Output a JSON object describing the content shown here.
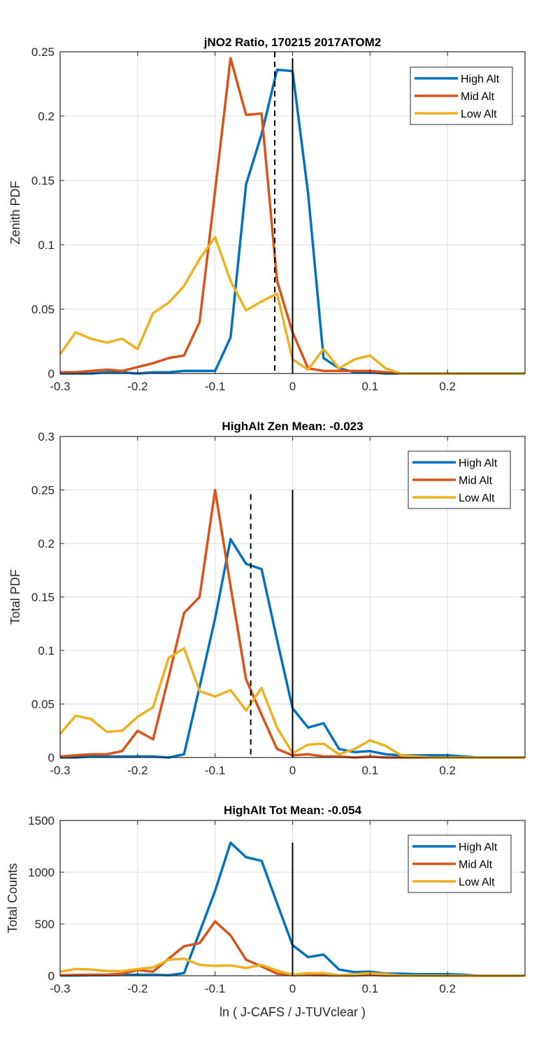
{
  "colors": {
    "high": "#0072bd",
    "mid": "#d95319",
    "low": "#edb120",
    "ref": "#000000"
  },
  "xlabel": "ln ( J-CAFS / J-TUVclear )",
  "chart_data": [
    {
      "type": "line",
      "title": "jNO2 Ratio, 170215 2017ATOM2",
      "xlabel": "",
      "ylabel": "Zenith PDF",
      "xlim": [
        -0.3,
        0.3
      ],
      "ylim": [
        0,
        0.25
      ],
      "xticks": [
        -0.3,
        -0.2,
        -0.1,
        0,
        0.1,
        0.2
      ],
      "xtick_labels": [
        "-0.3",
        "-0.2",
        "-0.1",
        "0",
        "0.1",
        "0.2"
      ],
      "yticks": [
        0,
        0.05,
        0.1,
        0.15,
        0.2,
        0.25
      ],
      "ytick_labels": [
        "0",
        "0.05",
        "0.1",
        "0.15",
        "0.2",
        "0.25"
      ],
      "grid": true,
      "legend_position": "top-right",
      "x": [
        -0.3,
        -0.28,
        -0.26,
        -0.24,
        -0.22,
        -0.2,
        -0.18,
        -0.16,
        -0.14,
        -0.12,
        -0.1,
        -0.08,
        -0.06,
        -0.04,
        -0.02,
        0,
        0.02,
        0.04,
        0.06,
        0.08,
        0.1,
        0.12,
        0.14,
        0.16,
        0.18,
        0.2,
        0.22,
        0.24,
        0.26,
        0.28,
        0.3
      ],
      "series": [
        {
          "name": "High Alt",
          "color_key": "high",
          "values": [
            0.0,
            0.0,
            0.0,
            0.001,
            0.001,
            0.0,
            0.001,
            0.001,
            0.002,
            0.002,
            0.002,
            0.028,
            0.147,
            0.186,
            0.236,
            0.235,
            0.14,
            0.012,
            0.004,
            0.001,
            0.001,
            0.0,
            0.0,
            0.0,
            0.0,
            0.0,
            0.0,
            0.0,
            0.0,
            0.0,
            0.0
          ]
        },
        {
          "name": "Mid Alt",
          "color_key": "mid",
          "values": [
            0.001,
            0.001,
            0.002,
            0.003,
            0.002,
            0.005,
            0.008,
            0.012,
            0.014,
            0.04,
            0.142,
            0.245,
            0.201,
            0.202,
            0.072,
            0.032,
            0.004,
            0.002,
            0.002,
            0.002,
            0.002,
            0.001,
            0.0,
            0.0,
            0.0,
            0.0,
            0.0,
            0.0,
            0.0,
            0.0,
            0.0
          ]
        },
        {
          "name": "Low Alt",
          "color_key": "low",
          "values": [
            0.015,
            0.032,
            0.027,
            0.024,
            0.027,
            0.019,
            0.047,
            0.055,
            0.068,
            0.089,
            0.106,
            0.072,
            0.049,
            0.056,
            0.062,
            0.011,
            0.003,
            0.019,
            0.004,
            0.011,
            0.014,
            0.004,
            0.0,
            0.0,
            0.0,
            0.0,
            0.0,
            0.0,
            0.0,
            0.0,
            0.0
          ]
        }
      ],
      "reference_lines": [
        {
          "name": "zero-line",
          "x": 0,
          "y_top": 0.245,
          "style": "solid"
        },
        {
          "name": "mean-line",
          "x": -0.023,
          "y_top": 0.25,
          "style": "dashed"
        }
      ]
    },
    {
      "type": "line",
      "title": "HighAlt Zen Mean: -0.023",
      "xlabel": "",
      "ylabel": "Total PDF",
      "xlim": [
        -0.3,
        0.3
      ],
      "ylim": [
        0,
        0.3
      ],
      "xticks": [
        -0.3,
        -0.2,
        -0.1,
        0,
        0.1,
        0.2
      ],
      "xtick_labels": [
        "-0.3",
        "-0.2",
        "-0.1",
        "0",
        "0.1",
        "0.2"
      ],
      "yticks": [
        0,
        0.05,
        0.1,
        0.15,
        0.2,
        0.25,
        0.3
      ],
      "ytick_labels": [
        "0",
        "0.05",
        "0.1",
        "0.15",
        "0.2",
        "0.25",
        "0.3"
      ],
      "grid": true,
      "legend_position": "top-right",
      "x": [
        -0.3,
        -0.28,
        -0.26,
        -0.24,
        -0.22,
        -0.2,
        -0.18,
        -0.16,
        -0.14,
        -0.12,
        -0.1,
        -0.08,
        -0.06,
        -0.04,
        -0.02,
        0,
        0.02,
        0.04,
        0.06,
        0.08,
        0.1,
        0.12,
        0.14,
        0.16,
        0.18,
        0.2,
        0.22,
        0.24,
        0.26,
        0.28,
        0.3
      ],
      "series": [
        {
          "name": "High Alt",
          "color_key": "high",
          "values": [
            0.0,
            0.0,
            0.001,
            0.001,
            0.001,
            0.001,
            0.001,
            0.0,
            0.003,
            0.066,
            0.13,
            0.204,
            0.181,
            0.176,
            0.11,
            0.046,
            0.028,
            0.032,
            0.008,
            0.005,
            0.006,
            0.003,
            0.002,
            0.002,
            0.002,
            0.002,
            0.001,
            0.0,
            0.0,
            0.0,
            0.0
          ]
        },
        {
          "name": "Mid Alt",
          "color_key": "mid",
          "values": [
            0.001,
            0.002,
            0.003,
            0.003,
            0.006,
            0.025,
            0.017,
            0.075,
            0.135,
            0.15,
            0.25,
            0.16,
            0.073,
            0.04,
            0.008,
            0.002,
            0.003,
            0.001,
            0.001,
            0.0,
            0.001,
            0.0,
            0.0,
            0.0,
            0.0,
            0.0,
            0.0,
            0.0,
            0.0,
            0.0,
            0.0
          ]
        },
        {
          "name": "Low Alt",
          "color_key": "low",
          "values": [
            0.022,
            0.039,
            0.036,
            0.024,
            0.025,
            0.038,
            0.047,
            0.093,
            0.102,
            0.062,
            0.057,
            0.063,
            0.044,
            0.065,
            0.028,
            0.004,
            0.012,
            0.013,
            0.003,
            0.008,
            0.016,
            0.011,
            0.002,
            0.001,
            0.0,
            0.0,
            0.0,
            0.0,
            0.0,
            0.0,
            0.0
          ]
        }
      ],
      "reference_lines": [
        {
          "name": "zero-line",
          "x": 0,
          "y_top": 0.25,
          "style": "solid"
        },
        {
          "name": "mean-line",
          "x": -0.054,
          "y_top": 0.246,
          "style": "dashed"
        }
      ]
    },
    {
      "type": "line",
      "title": "HighAlt Tot Mean: -0.054",
      "xlabel": "ln ( J-CAFS / J-TUVclear )",
      "ylabel": "Total Counts",
      "xlim": [
        -0.3,
        0.3
      ],
      "ylim": [
        0,
        1500
      ],
      "xticks": [
        -0.3,
        -0.2,
        -0.1,
        0,
        0.1,
        0.2
      ],
      "xtick_labels": [
        "-0.3",
        "-0.2",
        "-0.1",
        "0",
        "0.1",
        "0.2"
      ],
      "yticks": [
        0,
        500,
        1000,
        1500
      ],
      "ytick_labels": [
        "0",
        "500",
        "1000",
        "1500"
      ],
      "grid": true,
      "legend_position": "top-right",
      "x": [
        -0.3,
        -0.28,
        -0.26,
        -0.24,
        -0.22,
        -0.2,
        -0.18,
        -0.16,
        -0.14,
        -0.12,
        -0.1,
        -0.08,
        -0.06,
        -0.04,
        -0.02,
        0,
        0.02,
        0.04,
        0.06,
        0.08,
        0.1,
        0.12,
        0.14,
        0.16,
        0.18,
        0.2,
        0.22,
        0.24,
        0.26,
        0.28,
        0.3
      ],
      "series": [
        {
          "name": "High Alt",
          "color_key": "high",
          "values": [
            2,
            3,
            5,
            5,
            8,
            10,
            10,
            5,
            25,
            420,
            820,
            1285,
            1145,
            1110,
            700,
            295,
            180,
            205,
            60,
            35,
            40,
            20,
            20,
            15,
            15,
            15,
            10,
            0,
            0,
            0,
            0
          ]
        },
        {
          "name": "Mid Alt",
          "color_key": "mid",
          "values": [
            5,
            8,
            10,
            10,
            20,
            55,
            40,
            165,
            285,
            315,
            525,
            390,
            155,
            90,
            20,
            5,
            8,
            5,
            3,
            3,
            8,
            3,
            2,
            0,
            0,
            0,
            0,
            0,
            0,
            0,
            0
          ]
        },
        {
          "name": "Low Alt",
          "color_key": "low",
          "values": [
            40,
            65,
            60,
            45,
            45,
            65,
            80,
            155,
            165,
            105,
            95,
            100,
            75,
            105,
            50,
            10,
            25,
            25,
            5,
            15,
            25,
            15,
            3,
            1,
            0,
            0,
            0,
            0,
            0,
            0,
            0
          ]
        }
      ],
      "reference_lines": [
        {
          "name": "zero-line",
          "x": 0,
          "y_top": 1285,
          "style": "solid"
        }
      ]
    }
  ]
}
